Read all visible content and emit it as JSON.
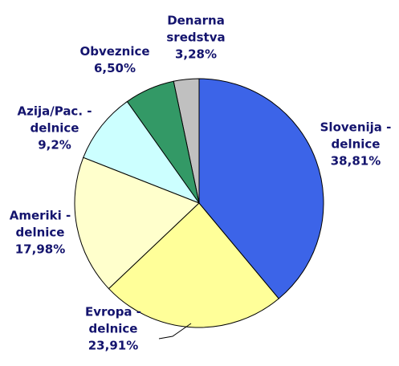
{
  "chart_data": {
    "type": "pie",
    "categories": [
      "Slovenija - delnice",
      "Evropa - delnice",
      "Ameriki - delnice",
      "Azija/Pac. - delnice",
      "Obveznice",
      "Denarna sredstva"
    ],
    "values": [
      38.81,
      23.91,
      17.98,
      9.2,
      6.5,
      3.28
    ],
    "value_labels": [
      "38,81%",
      "23,91%",
      "17,98%",
      "9,2%",
      "6,50%",
      "3,28%"
    ],
    "colors": [
      "#3c64e8",
      "#ffff99",
      "#ffffcc",
      "#ccffff",
      "#339966",
      "#c0c0c0"
    ]
  }
}
